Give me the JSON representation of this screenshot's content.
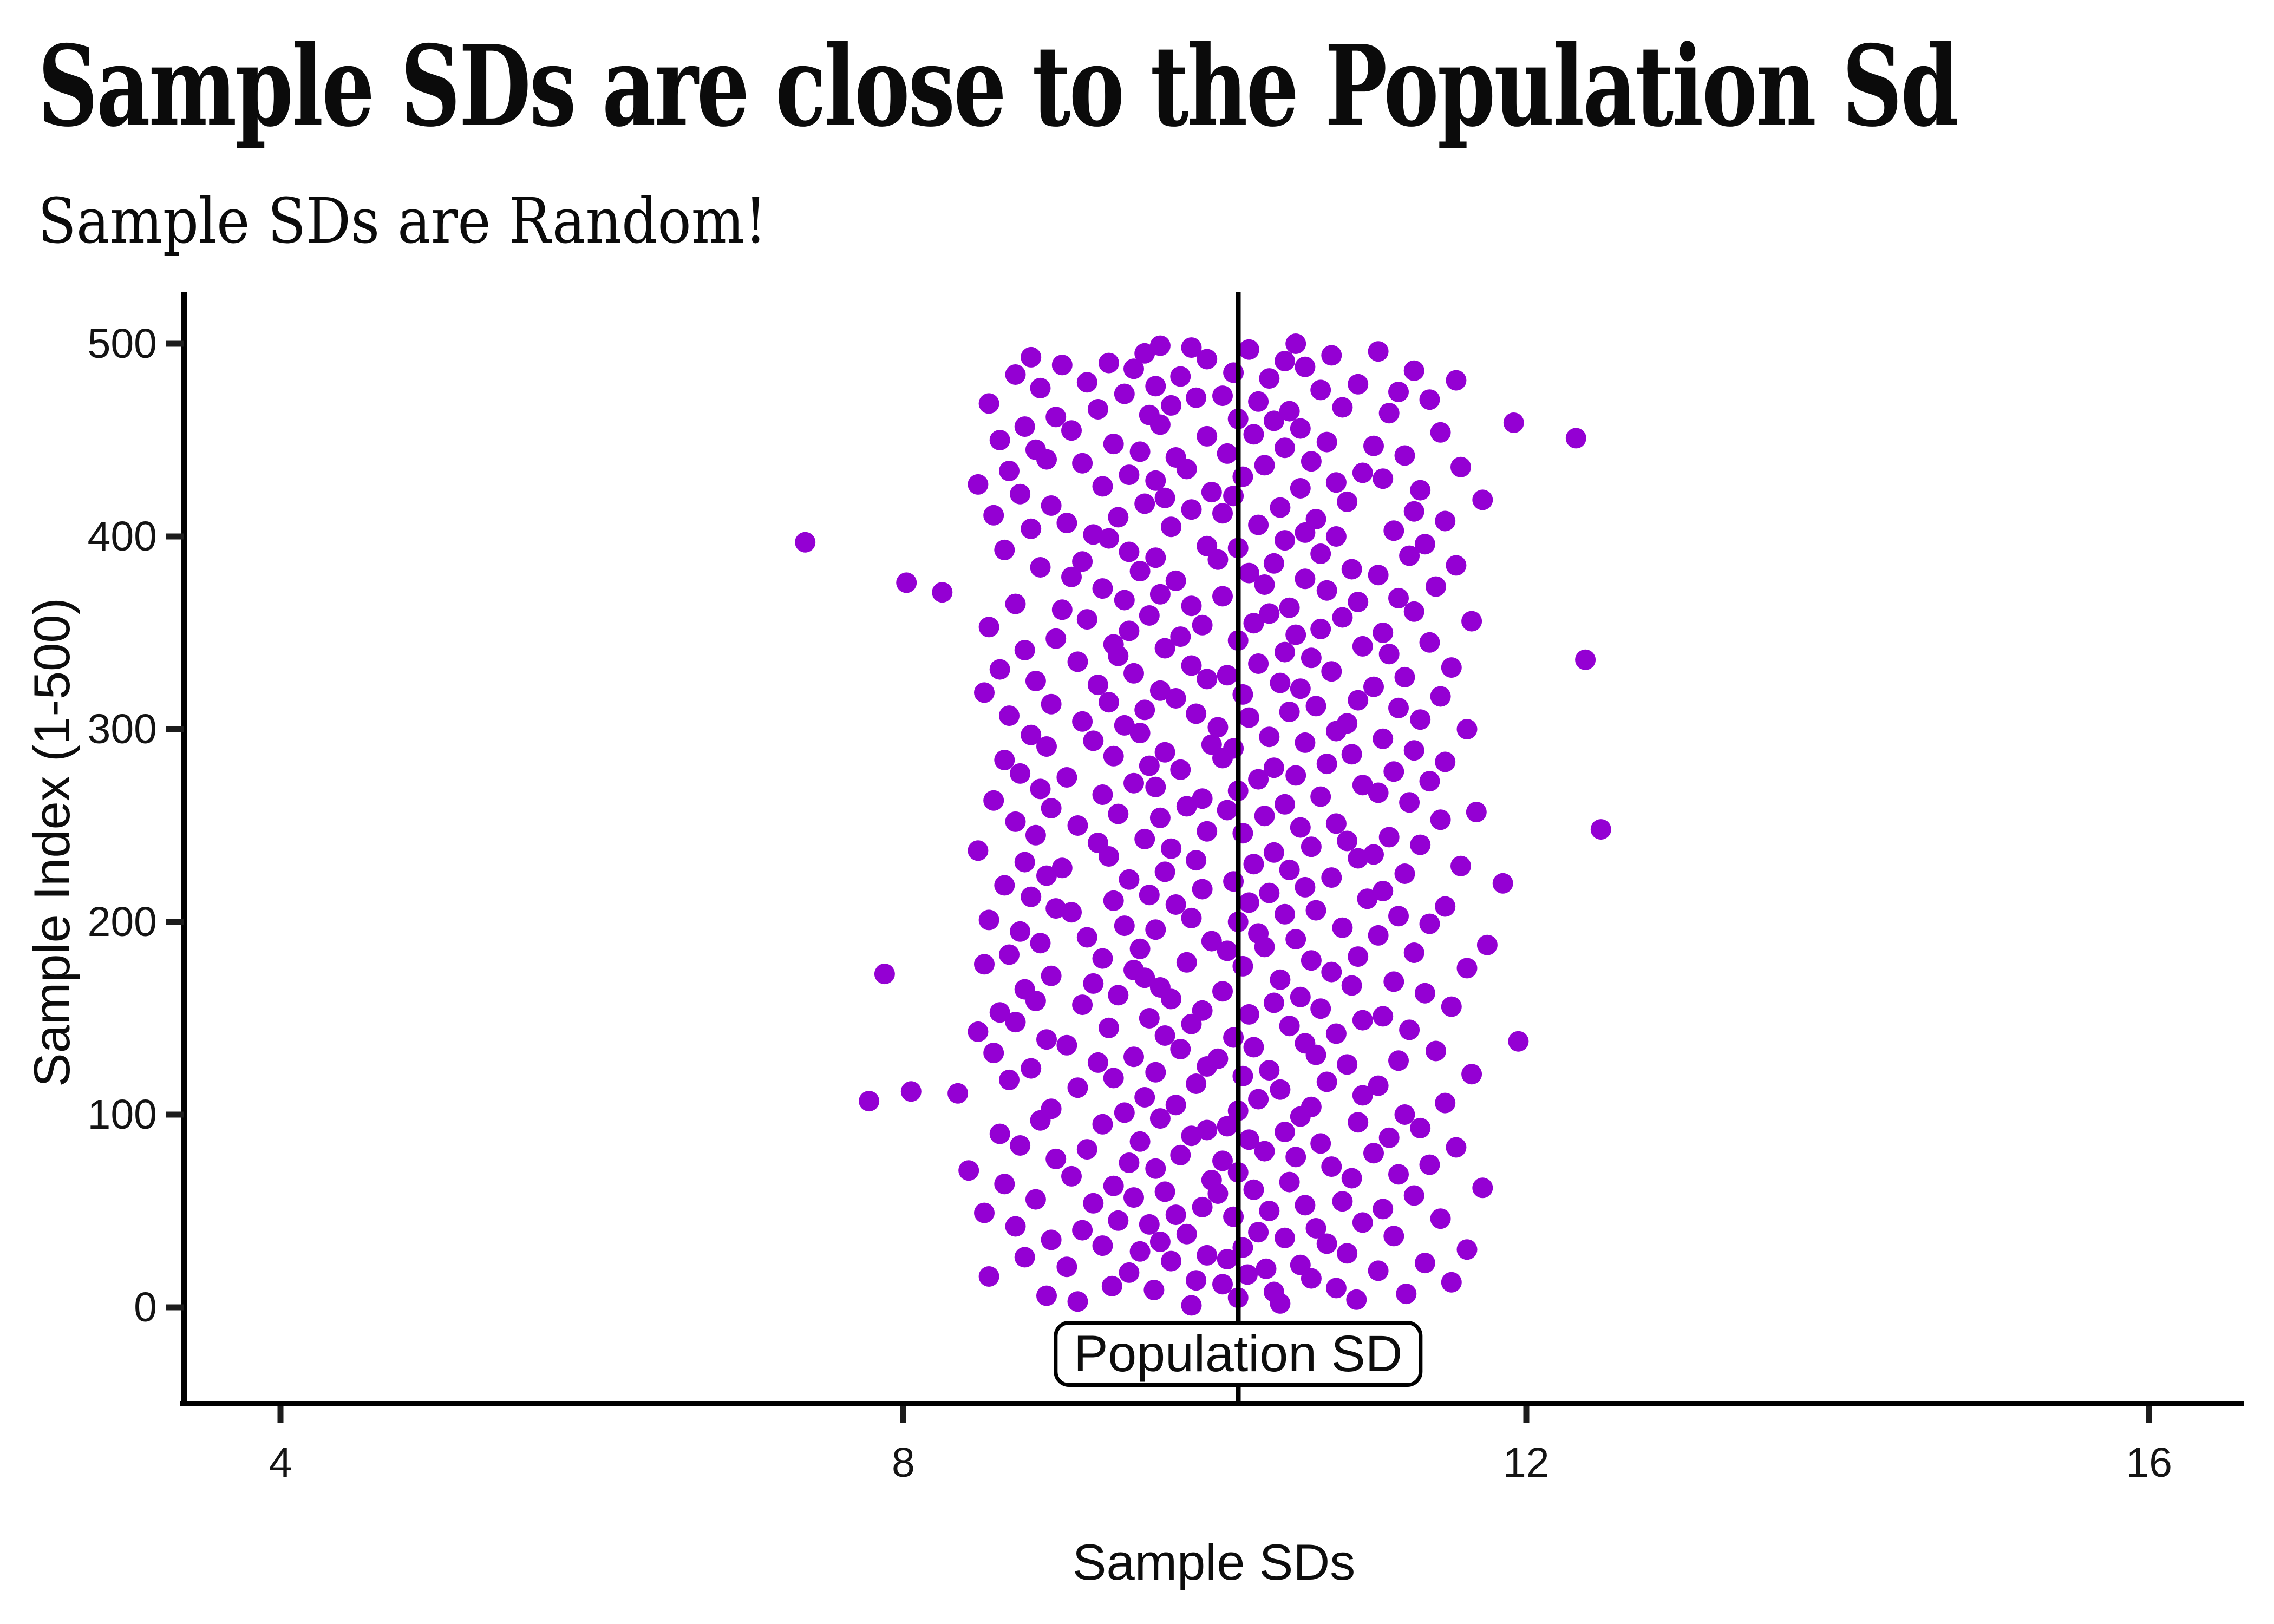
{
  "header": {
    "title": "Sample SDs are close to the Population Sd",
    "subtitle": "Sample SDs are Random!"
  },
  "annotation": {
    "label": "Population SD",
    "value": 10.15
  },
  "axes": {
    "x": {
      "label": "Sample SDs",
      "ticks": [
        4,
        8,
        12,
        16
      ]
    },
    "y": {
      "label": "Sample Index (1-500)",
      "ticks": [
        0,
        100,
        200,
        300,
        400,
        500
      ]
    }
  },
  "colors": {
    "point": "#9400D3",
    "axis": "#000000",
    "text": "#111111",
    "background": "#FFFFFF"
  },
  "chart_data": {
    "type": "scatter",
    "title": "Sample SDs are close to the Population Sd",
    "subtitle": "Sample SDs are Random!",
    "xlabel": "Sample SDs",
    "ylabel": "Sample Index (1-500)",
    "xlim": [
      3.4,
      16.6
    ],
    "ylim": [
      -50,
      527
    ],
    "x_ticks": [
      4,
      8,
      12,
      16
    ],
    "y_ticks": [
      0,
      100,
      200,
      300,
      400,
      500
    ],
    "grid": false,
    "legend": "none",
    "point_color": "#9400D3",
    "point_radius_px": 19,
    "population_sd_line": {
      "x": 10.15,
      "label": "Population SD",
      "color": "#000000"
    },
    "y_rule": "point i (0-based) has y = i + 1, i.e. sample indices 1..500",
    "points_x": [
      9.85,
      10.42,
      9.12,
      10.91,
      10.15,
      8.92,
      11.23,
      10.38,
      9.61,
      10.78,
      9.34,
      10.05,
      11.52,
      9.88,
      10.62,
      8.55,
      10.21,
      9.45,
      11.05,
      10.33,
      9.05,
      10.55,
      11.35,
      9.72,
      10.08,
      8.78,
      9.95,
      10.85,
      9.52,
      11.62,
      10.18,
      9.28,
      10.72,
      9.65,
      8.95,
      10.45,
      11.15,
      9.82,
      10.28,
      9.15,
      10.65,
      8.72,
      9.58,
      10.95,
      9.38,
      11.45,
      10.12,
      9.75,
      8.52,
      10.35,
      11.08,
      9.92,
      10.58,
      9.22,
      10.82,
      8.85,
      9.48,
      11.28,
      10.02,
      9.68,
      10.25,
      11.72,
      9.35,
      8.65,
      10.48,
      9.98,
      10.88,
      9.08,
      11.18,
      10.15,
      8.42,
      9.62,
      10.75,
      11.38,
      9.45,
      10.05,
      8.98,
      10.52,
      9.78,
      11.02,
      10.32,
      9.18,
      11.55,
      8.75,
      10.68,
      9.52,
      10.22,
      11.12,
      9.85,
      8.62,
      10.45,
      9.95,
      11.32,
      10.08,
      9.28,
      10.92,
      8.88,
      9.65,
      10.55,
      11.22,
      9.42,
      10.15,
      8.95,
      10.62,
      9.75,
      11.48,
      7.78,
      10.28,
      9.55,
      10.95,
      8.35,
      8.05,
      10.42,
      9.12,
      11.05,
      9.88,
      10.72,
      8.68,
      9.35,
      10.18,
      11.65,
      9.62,
      10.35,
      8.82,
      9.95,
      10.85,
      9.25,
      11.18,
      10.02,
      9.48,
      10.65,
      8.58,
      11.42,
      9.78,
      10.25,
      9.05,
      10.58,
      11.95,
      8.92,
      10.12,
      9.68,
      10.78,
      8.48,
      11.25,
      9.32,
      10.48,
      9.85,
      8.72,
      10.95,
      9.58,
      11.08,
      10.22,
      8.62,
      9.92,
      10.68,
      11.52,
      9.15,
      10.38,
      8.85,
      9.72,
      10.55,
      9.38,
      11.35,
      10.05,
      8.78,
      9.65,
      10.88,
      9.22,
      11.15,
      10.42,
      9.55,
      8.95,
      7.88,
      10.75,
      9.48,
      11.62,
      10.18,
      8.52,
      9.82,
      10.62,
      9.28,
      10.92,
      8.68,
      11.28,
      10.08,
      9.52,
      10.32,
      11.75,
      8.88,
      9.98,
      10.52,
      9.18,
      11.05,
      10.28,
      8.75,
      9.62,
      10.82,
      9.42,
      11.38,
      10.15,
      8.55,
      9.85,
      11.18,
      10.45,
      9.08,
      10.65,
      8.98,
      11.48,
      9.75,
      10.22,
      9.35,
      10.98,
      8.82,
      9.58,
      10.35,
      11.08,
      9.92,
      10.58,
      8.65,
      11.85,
      10.12,
      9.45,
      10.75,
      8.92,
      11.22,
      9.68,
      10.48,
      9.02,
      11.58,
      10.25,
      8.78,
      9.88,
      10.92,
      9.32,
      11.02,
      10.38,
      8.48,
      9.72,
      10.62,
      11.32,
      9.25,
      10.85,
      9.55,
      11.12,
      8.85,
      10.18,
      9.95,
      12.48,
      10.55,
      9.12,
      10.78,
      8.72,
      11.45,
      9.65,
      10.32,
      9.38,
      11.68,
      10.08,
      8.95,
      9.82,
      10.45,
      11.25,
      8.58,
      9.92,
      10.68,
      9.28,
      11.05,
      10.15,
      8.88,
      9.62,
      10.95,
      9.48,
      11.38,
      10.28,
      9.05,
      10.52,
      8.75,
      11.15,
      9.78,
      10.38,
      9.58,
      10.72,
      11.48,
      8.65,
      10.05,
      9.35,
      10.88,
      9.68,
      11.28,
      10.12,
      8.92,
      9.98,
      10.58,
      9.22,
      11.08,
      10.35,
      8.82,
      9.52,
      10.78,
      11.62,
      10.02,
      9.42,
      10.85,
      9.15,
      11.32,
      10.22,
      8.68,
      9.88,
      10.48,
      9.55,
      11.18,
      10.65,
      8.95,
      9.32,
      10.92,
      9.75,
      11.45,
      10.18,
      8.52,
      9.65,
      10.55,
      11.02,
      9.25,
      10.42,
      8.85,
      9.95,
      11.22,
      10.08,
      9.48,
      10.75,
      8.62,
      11.52,
      9.85,
      10.28,
      9.12,
      12.38,
      10.62,
      9.38,
      11.12,
      10.45,
      8.78,
      9.68,
      10.95,
      9.35,
      11.38,
      10.15,
      8.98,
      9.78,
      10.52,
      11.08,
      9.45,
      10.68,
      8.55,
      9.92,
      10.25,
      11.65,
      9.18,
      10.82,
      9.58,
      10.35,
      11.28,
      9.02,
      10.48,
      9.85,
      8.72,
      10.92,
      9.42,
      11.18,
      10.05,
      9.65,
      8.25,
      10.72,
      9.28,
      11.42,
      10.32,
      8.02,
      9.75,
      10.58,
      9.08,
      11.05,
      10.22,
      9.52,
      10.88,
      8.88,
      11.55,
      10.38,
      9.15,
      10.02,
      9.62,
      11.25,
      10.68,
      9.45,
      8.65,
      10.15,
      9.95,
      11.35,
      7.37,
      10.45,
      9.32,
      10.78,
      9.22,
      10.58,
      11.15,
      8.82,
      9.72,
      10.28,
      9.05,
      11.48,
      10.65,
      9.38,
      8.58,
      10.05,
      11.28,
      9.85,
      10.42,
      8.95,
      9.55,
      10.85,
      11.72,
      9.68,
      10.12,
      8.75,
      9.98,
      11.32,
      10.55,
      9.28,
      8.48,
      10.78,
      9.62,
      11.08,
      10.18,
      9.45,
      10.95,
      8.68,
      9.82,
      11.58,
      10.32,
      9.15,
      10.62,
      8.92,
      9.75,
      11.22,
      10.08,
      9.52,
      8.85,
      10.45,
      11.02,
      9.35,
      10.72,
      8.62,
      12.32,
      9.95,
      10.25,
      11.45,
      9.08,
      10.55,
      8.78,
      9.65,
      11.92,
      10.38,
      10.15,
      8.98,
      9.58,
      11.12,
      10.48,
      9.25,
      10.82,
      9.72,
      8.55,
      10.28,
      11.38,
      9.88,
      10.05,
      9.42,
      11.18,
      10.68,
      8.88,
      9.62,
      10.92,
      9.18,
      11.55,
      10.35,
      9.78,
      8.72,
      10.12,
      11.28,
      9.48,
      10.58,
      9.02,
      9.32,
      10.45,
      9.95,
      8.82,
      10.75,
      9.55,
      11.05,
      10.22,
      9.85,
      9.65,
      10.52
    ]
  }
}
